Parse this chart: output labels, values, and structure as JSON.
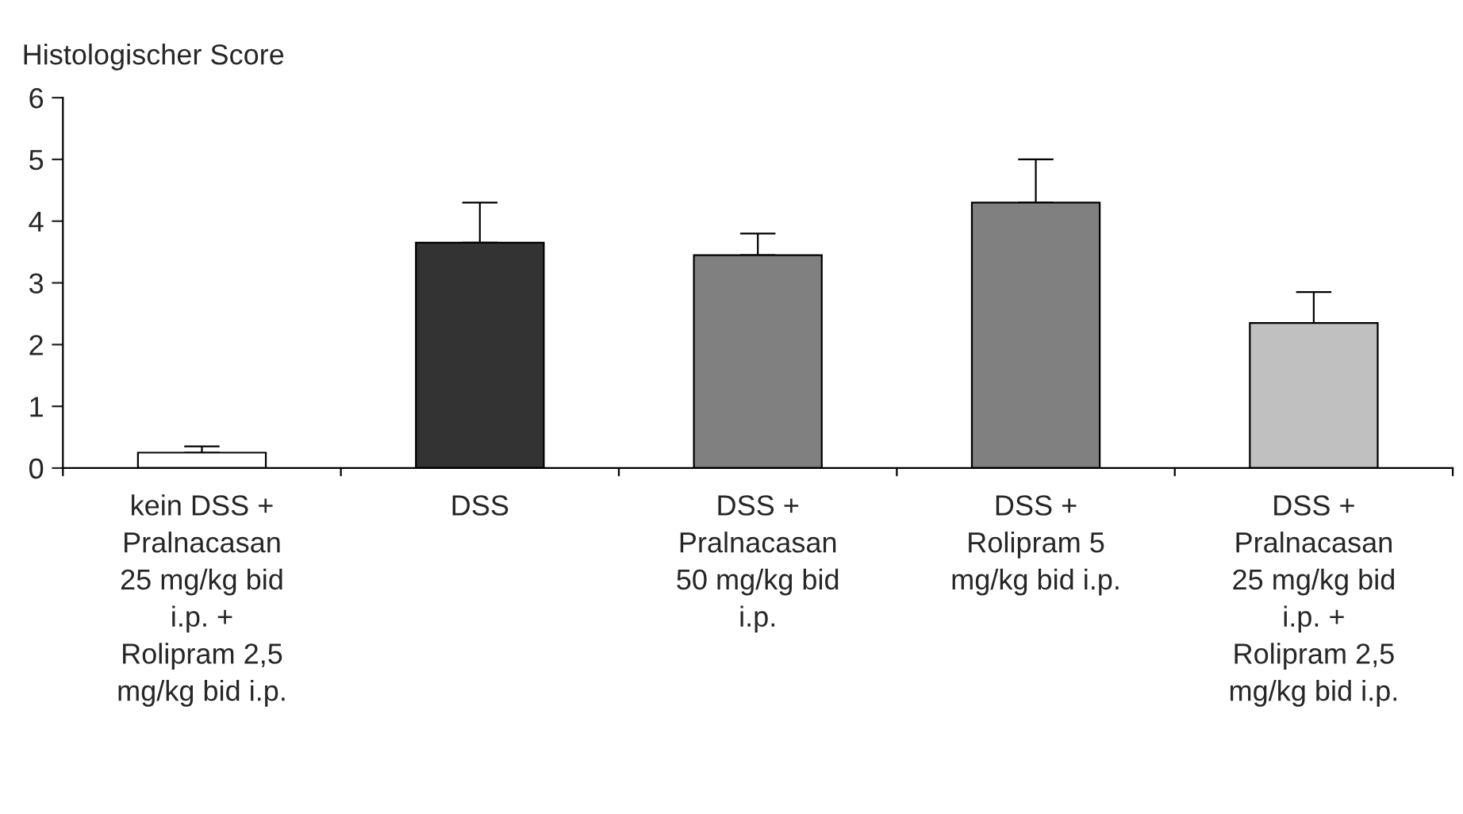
{
  "chart_data": {
    "type": "bar",
    "ylabel": "Histologischer Score",
    "categories": [
      "kein DSS +\nPralnacasan\n25 mg/kg bid\ni.p. +\nRolipram 2,5\nmg/kg bid i.p.",
      "DSS",
      "DSS +\nPralnacasan\n50 mg/kg bid\ni.p.",
      "DSS +\nRolipram 5\nmg/kg bid i.p.",
      "DSS +\nPralnacasan\n25 mg/kg bid\ni.p. +\nRolipram 2,5\nmg/kg bid i.p."
    ],
    "values": [
      0.25,
      3.65,
      3.45,
      4.3,
      2.35
    ],
    "errors": [
      [
        0.25,
        0.35
      ],
      [
        3.65,
        4.3
      ],
      [
        3.45,
        3.8
      ],
      [
        4.3,
        5.0
      ],
      [
        2.35,
        2.85
      ]
    ],
    "colors": [
      "#ffffff",
      "#333333",
      "#808080",
      "#808080",
      "#c0c0c0"
    ],
    "ylim": [
      0,
      6
    ],
    "yticks": [
      0,
      1,
      2,
      3,
      4,
      5,
      6
    ],
    "grid": false,
    "legend": false
  }
}
